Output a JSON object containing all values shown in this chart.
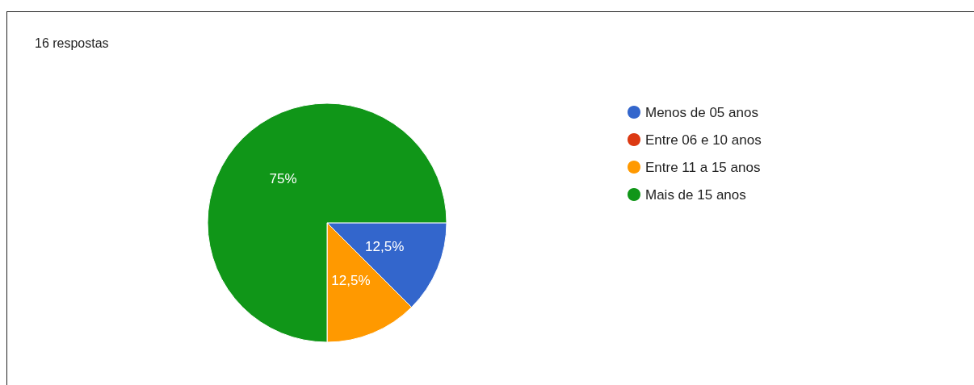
{
  "chart_data": {
    "type": "pie",
    "subtitle": "16 respostas",
    "categories": [
      "Menos de 05 anos",
      "Entre 06 e 10 anos",
      "Entre 11 a 15 anos",
      "Mais de 15 anos"
    ],
    "values": [
      12.5,
      0,
      12.5,
      75
    ],
    "colors": [
      "#3366cc",
      "#dc3912",
      "#ff9900",
      "#109618"
    ],
    "value_labels": [
      "12,5%",
      null,
      "12,5%",
      "75%"
    ],
    "legend": "right"
  }
}
